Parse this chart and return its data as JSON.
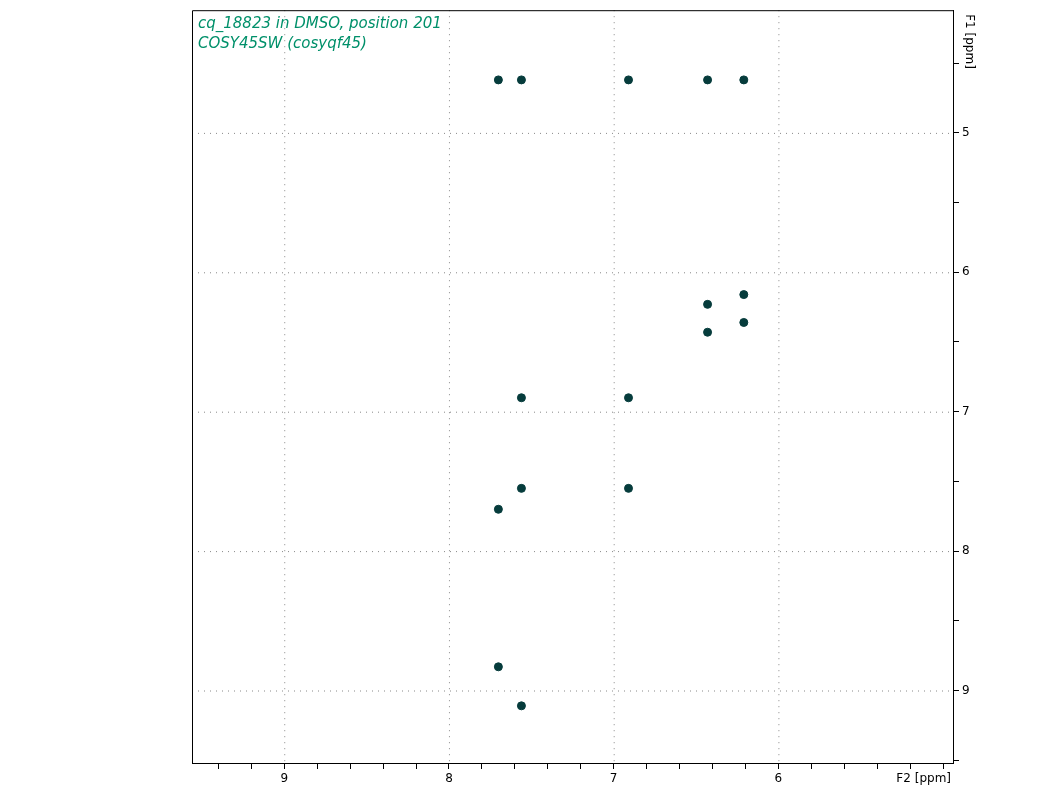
{
  "chart_data": {
    "type": "scatter",
    "title": "cq_18823 in DMSO, position 201",
    "subtitle": "COSY45SW (cosyqf45)",
    "xlabel": "F2 [ppm]",
    "ylabel": "F1 [ppm]",
    "series": [
      {
        "color": "#063c3c",
        "x": [
          7.7,
          7.56,
          6.91,
          6.43,
          6.21,
          6.21,
          6.43,
          6.43,
          6.21,
          7.56,
          6.91,
          7.56,
          6.91,
          7.7,
          7.7,
          7.56
        ],
        "values": [
          4.62,
          4.62,
          4.62,
          4.62,
          4.62,
          6.16,
          6.43,
          6.23,
          6.36,
          6.9,
          6.9,
          7.55,
          7.55,
          7.7,
          8.83,
          9.11
        ]
      }
    ],
    "xlim": [
      9.56,
      4.94
    ],
    "ylim": [
      9.52,
      4.12
    ],
    "xticks": [
      {
        "value": 9.4,
        "label": null
      },
      {
        "value": 9.2,
        "label": null
      },
      9,
      {
        "value": 8.8,
        "label": null
      },
      {
        "value": 8.6,
        "label": null
      },
      {
        "value": 8.4,
        "label": null
      },
      {
        "value": 8.2,
        "label": null
      },
      8,
      {
        "value": 7.8,
        "label": null
      },
      {
        "value": 7.6,
        "label": null
      },
      {
        "value": 7.4,
        "label": null
      },
      {
        "value": 7.2,
        "label": null
      },
      7,
      {
        "value": 6.8,
        "label": null
      },
      {
        "value": 6.6,
        "label": null
      },
      {
        "value": 6.4,
        "label": null
      },
      {
        "value": 6.2,
        "label": null
      },
      6,
      {
        "value": 5.8,
        "label": null
      },
      {
        "value": 5.6,
        "label": null
      },
      {
        "value": 5.4,
        "label": null
      },
      {
        "value": 5.2,
        "label": null
      },
      {
        "value": 5.0,
        "label": null
      }
    ],
    "yticks": [
      {
        "value": 4.5,
        "label": null
      },
      5,
      {
        "value": 5.5,
        "label": null
      },
      6,
      {
        "value": 6.5,
        "label": null
      },
      7,
      {
        "value": 7.5,
        "label": null
      },
      8,
      {
        "value": 8.5,
        "label": null
      },
      9,
      {
        "value": 9.5,
        "label": null
      }
    ],
    "grid": true,
    "marker": "circle"
  }
}
